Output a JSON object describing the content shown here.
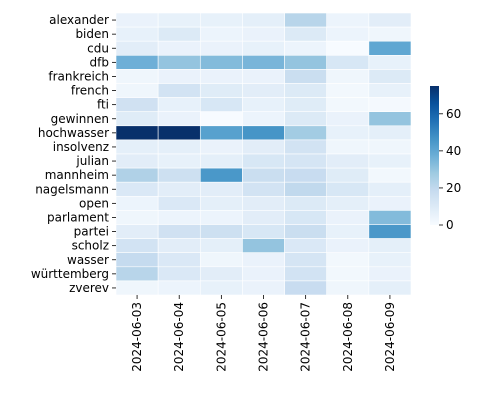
{
  "chart_data": {
    "type": "heatmap",
    "title": "",
    "xlabel": "",
    "ylabel": "",
    "x_categories": [
      "2024-06-03",
      "2024-06-04",
      "2024-06-05",
      "2024-06-06",
      "2024-06-07",
      "2024-06-08",
      "2024-06-09"
    ],
    "y_categories": [
      "alexander",
      "biden",
      "cdu",
      "dfb",
      "frankreich",
      "french",
      "fti",
      "gewinnen",
      "hochwasser",
      "insolvenz",
      "julian",
      "mannheim",
      "nagelsmann",
      "open",
      "parlament",
      "partei",
      "scholz",
      "wasser",
      "württemberg",
      "zverev"
    ],
    "values": [
      [
        5,
        6,
        6,
        7,
        22,
        4,
        8
      ],
      [
        6,
        10,
        4,
        5,
        10,
        4,
        3
      ],
      [
        8,
        5,
        5,
        6,
        4,
        0,
        40
      ],
      [
        37,
        30,
        33,
        35,
        30,
        12,
        6
      ],
      [
        3,
        5,
        5,
        5,
        17,
        3,
        10
      ],
      [
        3,
        14,
        9,
        8,
        10,
        2,
        6
      ],
      [
        15,
        6,
        12,
        6,
        9,
        2,
        1
      ],
      [
        9,
        5,
        0,
        4,
        10,
        5,
        30
      ],
      [
        75,
        75,
        42,
        46,
        27,
        6,
        7
      ],
      [
        7,
        7,
        5,
        8,
        14,
        3,
        3
      ],
      [
        8,
        6,
        7,
        12,
        13,
        8,
        6
      ],
      [
        24,
        16,
        45,
        17,
        18,
        9,
        2
      ],
      [
        11,
        8,
        8,
        14,
        20,
        12,
        7
      ],
      [
        4,
        11,
        7,
        8,
        10,
        7,
        5
      ],
      [
        3,
        4,
        4,
        8,
        12,
        5,
        33
      ],
      [
        8,
        15,
        16,
        12,
        17,
        6,
        45
      ],
      [
        14,
        8,
        7,
        30,
        11,
        5,
        7
      ],
      [
        19,
        11,
        3,
        5,
        13,
        2,
        6
      ],
      [
        22,
        11,
        8,
        5,
        14,
        2,
        5
      ],
      [
        3,
        4,
        6,
        5,
        18,
        3,
        7
      ]
    ],
    "colorbar": {
      "min": 0,
      "max": 75,
      "ticks": [
        0,
        20,
        40,
        60
      ],
      "colormap": "Blues"
    },
    "grid_lines": "white"
  }
}
